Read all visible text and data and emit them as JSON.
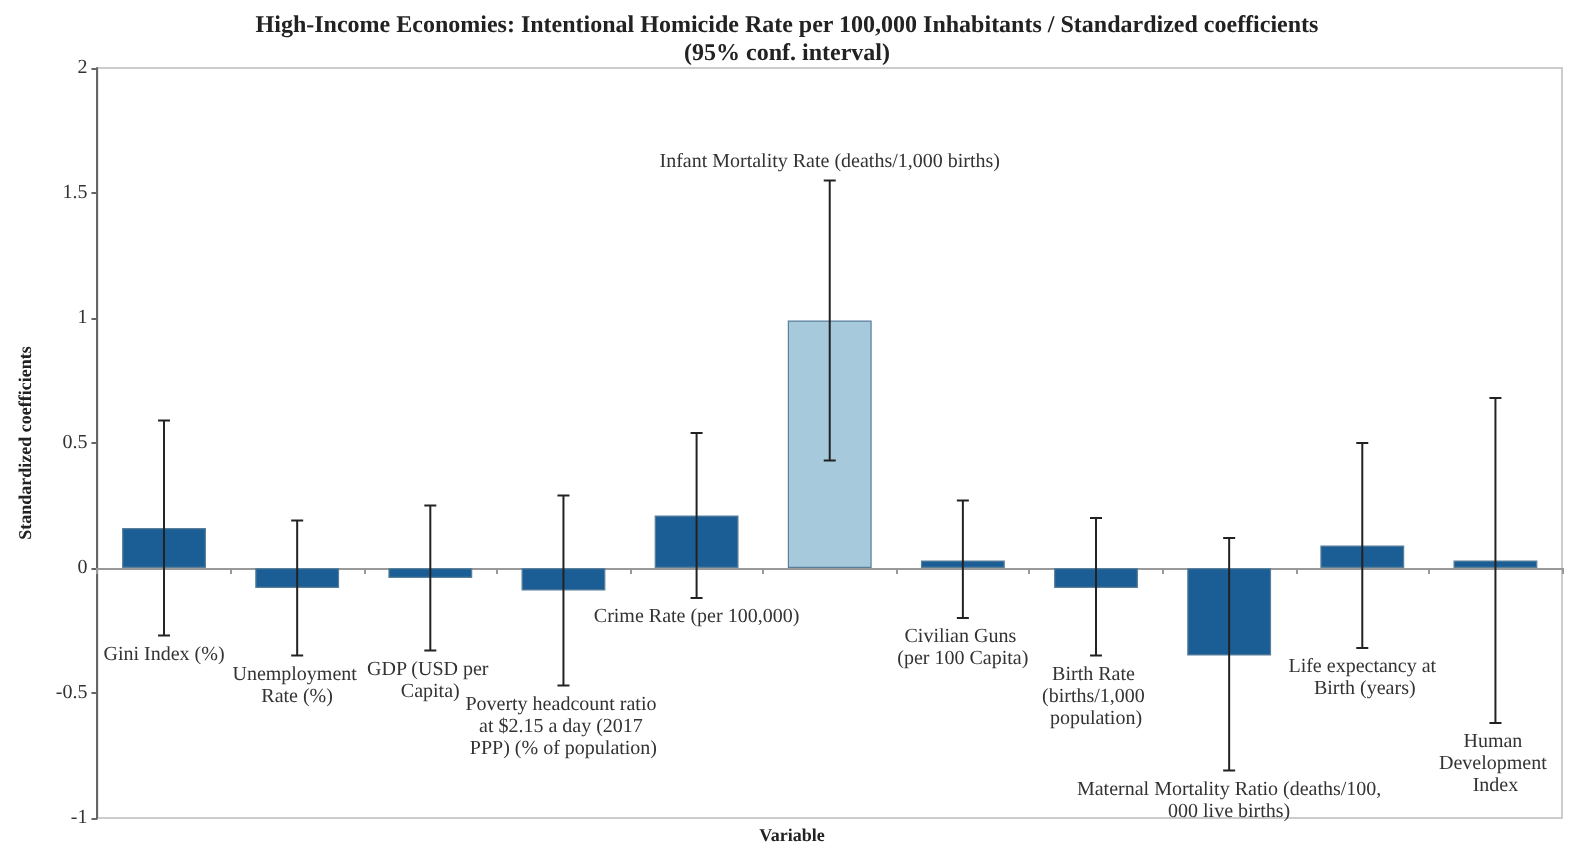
{
  "chart_data": {
    "type": "bar",
    "title": "High-Income Economies: Intentional Homicide Rate per 100,000 Inhabitants / Standardized coefficients\n(95% conf. interval)",
    "xlabel": "Variable",
    "ylabel": "Standardized coefficients",
    "categories": [
      "Gini Index (%)",
      "Unemployment Rate (%)",
      "GDP (USD per Capita)",
      "Poverty headcount ratio at $2.15 a day (2017 PPP) (% of population)",
      "Crime Rate (per 100,000)",
      "Infant Mortality Rate (deaths/1,000 births)",
      "Civilian Guns (per 100 Capita)",
      "Birth Rate (births/1,000 population)",
      "Maternal Mortality Ratio (deaths/100,000 live births)",
      "Life expectancy at Birth (years)",
      "Human Development Index"
    ],
    "values": [
      0.16,
      -0.08,
      -0.04,
      -0.09,
      0.21,
      0.99,
      0.03,
      -0.08,
      -0.35,
      0.09,
      0.03
    ],
    "errors": [
      [
        -0.27,
        0.59
      ],
      [
        -0.35,
        0.19
      ],
      [
        -0.33,
        0.25
      ],
      [
        -0.47,
        0.29
      ],
      [
        -0.12,
        0.54
      ],
      [
        0.43,
        1.55
      ],
      [
        -0.2,
        0.27
      ],
      [
        -0.35,
        0.2
      ],
      [
        -0.81,
        0.12
      ],
      [
        -0.32,
        0.5
      ],
      [
        -0.62,
        0.68
      ]
    ],
    "colors": [
      "#1b5e96",
      "#1b5e96",
      "#1b5e96",
      "#1b5e96",
      "#1b5e96",
      "#a6cadc",
      "#1b5e96",
      "#1b5e96",
      "#1b5e96",
      "#1b5e96",
      "#1b5e96"
    ],
    "ylim": [
      -1,
      2
    ],
    "yticks": [
      -1,
      -0.5,
      0,
      0.5,
      1,
      1.5,
      2
    ]
  }
}
